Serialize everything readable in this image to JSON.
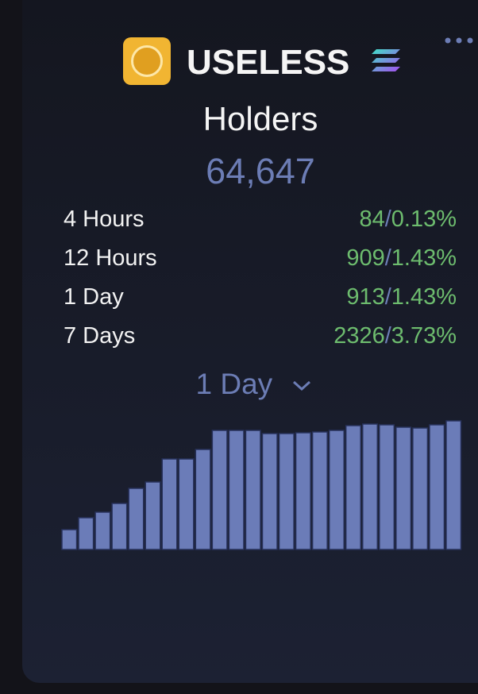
{
  "header": {
    "token": "USELESS",
    "metric": "Holders",
    "total": "64,647"
  },
  "stats": {
    "separator": "/",
    "rows": [
      {
        "label": "4 Hours",
        "count": "84",
        "percent": "0.13%"
      },
      {
        "label": "12 Hours",
        "count": "909",
        "percent": "1.43%"
      },
      {
        "label": "1 Day",
        "count": "913",
        "percent": "1.43%"
      },
      {
        "label": "7 Days",
        "count": "2326",
        "percent": "3.73%"
      }
    ]
  },
  "selector": "1 Day",
  "chart_data": {
    "type": "bar",
    "color": "#6b7cb8",
    "values": [
      25,
      40,
      47,
      58,
      77,
      85,
      114,
      114,
      126,
      150,
      150,
      150,
      146,
      146,
      147,
      148,
      150,
      156,
      158,
      157,
      154,
      153,
      157,
      162
    ]
  }
}
